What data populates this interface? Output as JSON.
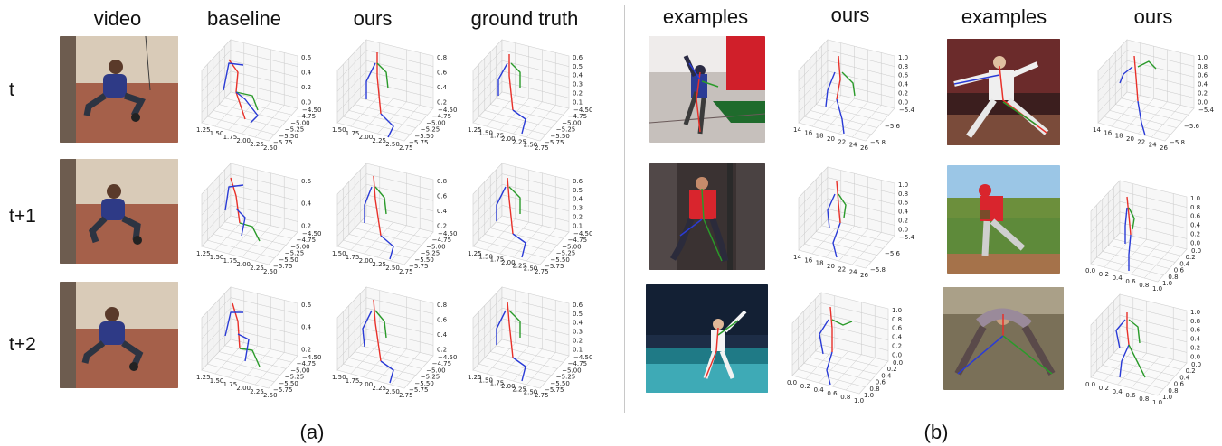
{
  "panel_a": {
    "headers": {
      "video": "video",
      "baseline": "baseline",
      "ours": "ours",
      "ground_truth": "ground  truth"
    },
    "rows": [
      "t",
      "t+1",
      "t+2"
    ],
    "caption": "(a)"
  },
  "panel_b": {
    "headers": [
      "examples",
      "ours",
      "examples",
      "ours"
    ],
    "caption": "(b)"
  },
  "ticks": {
    "a_x_baseline": [
      "1.25",
      "1.50",
      "1.75",
      "2.00",
      "2.25",
      "2.50"
    ],
    "a_x_ours": [
      "1.50",
      "1.75",
      "2.00",
      "2.25",
      "2.50",
      "2.75"
    ],
    "a_x_gt": [
      "1.25",
      "1.50",
      "1.75",
      "2.00",
      "2.25",
      "2.50",
      "2.75"
    ],
    "a_y": [
      "−4.50",
      "−4.75",
      "−5.00",
      "−5.25",
      "−5.50",
      "−5.75"
    ],
    "a_z_baseline": [
      "0.6",
      "0.4",
      "0.2",
      "0.0"
    ],
    "a_z_baseline_short": [
      "0.6",
      "0.4",
      "0.2"
    ],
    "a_z_ours": [
      "0.8",
      "0.6",
      "0.4",
      "0.2"
    ],
    "a_z_gt": [
      "0.6",
      "0.5",
      "0.4",
      "0.3",
      "0.2",
      "0.1"
    ],
    "b_x_top": [
      "14",
      "16",
      "18",
      "20",
      "22",
      "24",
      "26"
    ],
    "b_x_unit": [
      "0.0",
      "0.2",
      "0.4",
      "0.6",
      "0.8",
      "1.0"
    ],
    "b_y_top": [
      "−5.4",
      "−5.6",
      "−5.8"
    ],
    "b_y_unit": [
      "0.0",
      "0.2",
      "0.4",
      "0.6",
      "0.8",
      "1.0"
    ],
    "b_z": [
      "1.0",
      "0.8",
      "0.6",
      "0.4",
      "0.2",
      "0.0"
    ]
  },
  "colors": {
    "spine": "#e8312a",
    "left_limbs": "#2a3bd6",
    "right_limbs": "#2a9a2a",
    "grid": "#c9c9c9",
    "divider": "#c8c8c8"
  }
}
